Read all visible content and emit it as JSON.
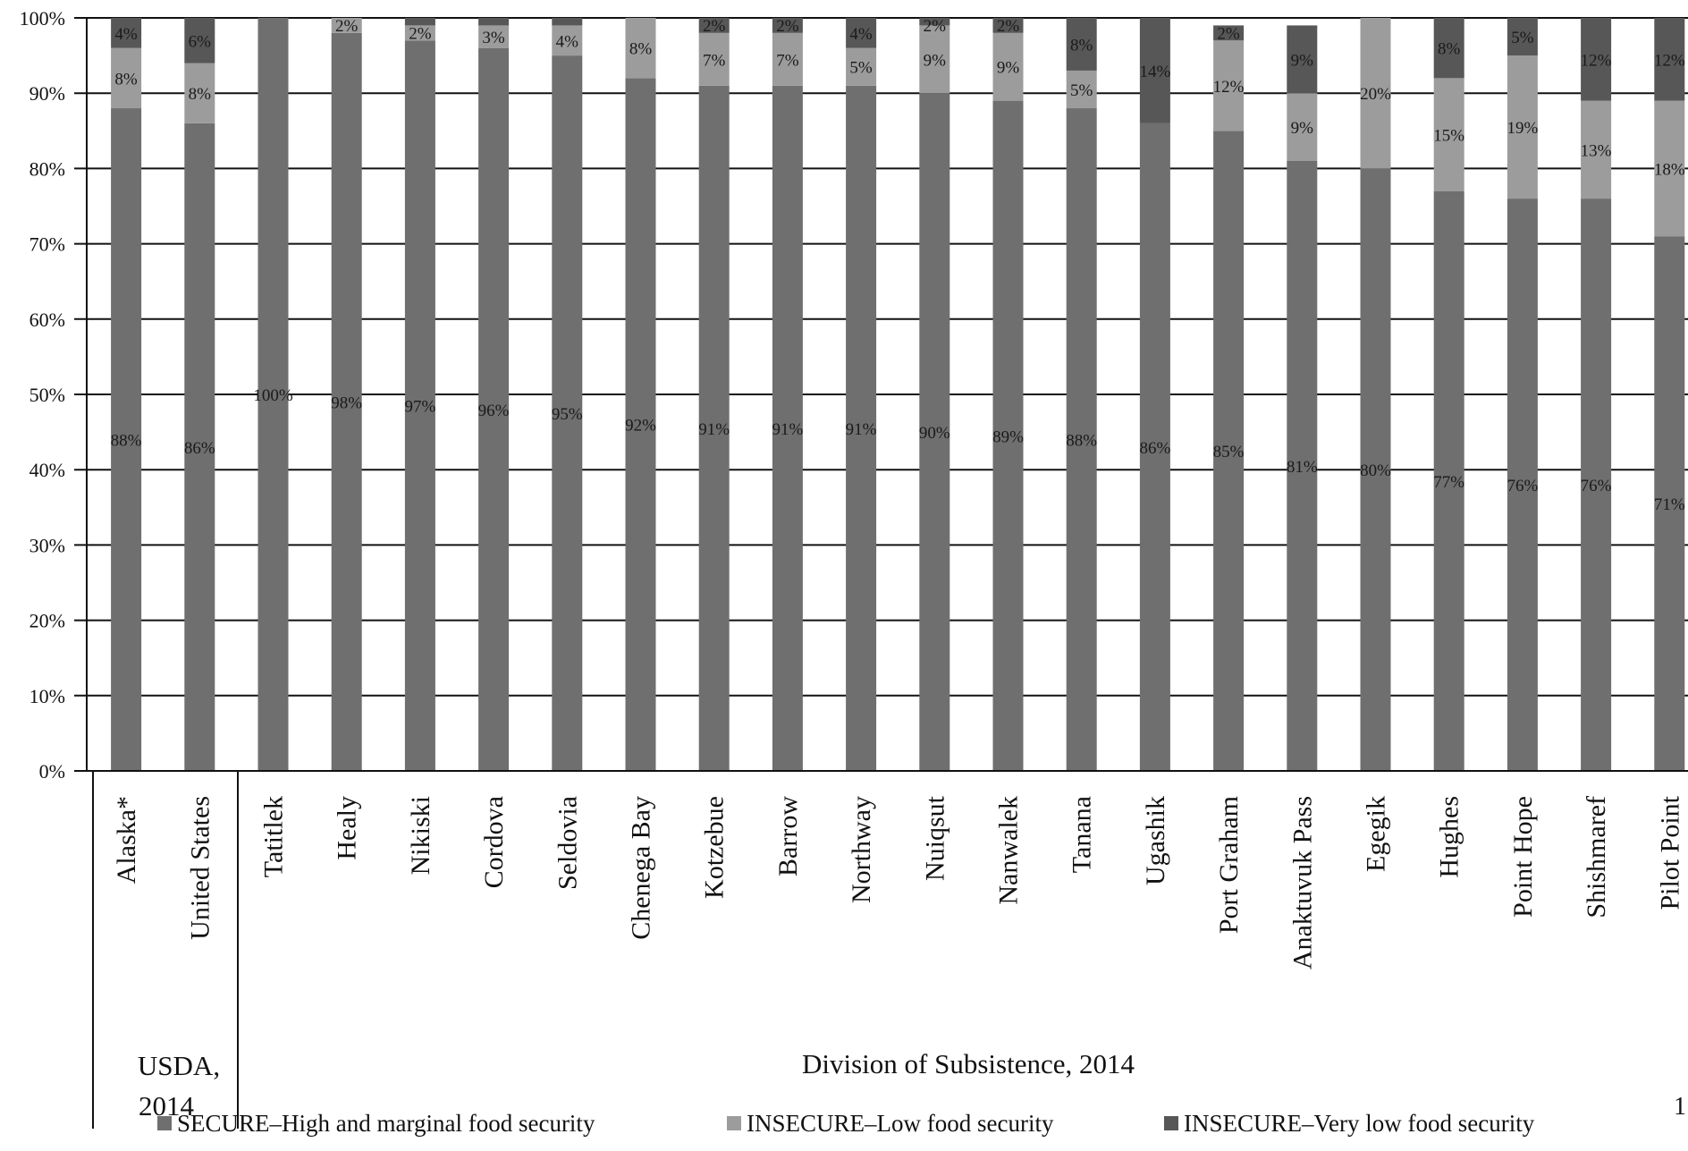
{
  "chart_data": {
    "type": "bar",
    "stacked": true,
    "categories": [
      "Alaska*",
      "United States",
      "Tatitlek",
      "Healy",
      "Nikiski",
      "Cordova",
      "Seldovia",
      "Chenega Bay",
      "Kotzebue",
      "Barrow",
      "Northway",
      "Nuiqsut",
      "Nanwalek",
      "Tanana",
      "Ugashik",
      "Port Graham",
      "Anaktuvuk Pass",
      "Egegik",
      "Hughes",
      "Point Hope",
      "Shishmaref",
      "Pilot Point"
    ],
    "series": [
      {
        "name": "SECURE–High and marginal food security",
        "color": "#6f6f6f",
        "values": [
          88,
          86,
          100,
          98,
          97,
          96,
          95,
          92,
          91,
          91,
          91,
          90,
          89,
          88,
          86,
          85,
          81,
          80,
          77,
          76,
          76,
          71
        ],
        "labels": [
          "88%",
          "86%",
          "100%",
          "98%",
          "97%",
          "96%",
          "95%",
          "92%",
          "91%",
          "91%",
          "91%",
          "90%",
          "89%",
          "88%",
          "86%",
          "85%",
          "81%",
          "80%",
          "77%",
          "76%",
          "76%",
          "71%"
        ]
      },
      {
        "name": "INSECURE–Low food security",
        "color": "#9c9c9c",
        "values": [
          8,
          8,
          0,
          2,
          2,
          3,
          4,
          8,
          7,
          7,
          5,
          9,
          9,
          5,
          0,
          12,
          9,
          20,
          15,
          19,
          13,
          18
        ],
        "labels": [
          "8%",
          "8%",
          "",
          "2%",
          "2%",
          "3%",
          "4%",
          "8%",
          "7%",
          "7%",
          "5%",
          "9%",
          "9%",
          "5%",
          "",
          "12%",
          "9%",
          "20%",
          "15%",
          "19%",
          "13%",
          "18%"
        ]
      },
      {
        "name": "INSECURE–Very low food security",
        "color": "#575757",
        "values": [
          4,
          6,
          0,
          0,
          1,
          1,
          1,
          0,
          2,
          2,
          4,
          2,
          2,
          8,
          14,
          2,
          9,
          0,
          8,
          5,
          12,
          12
        ],
        "labels": [
          "4%",
          "6%",
          "",
          "",
          "",
          "",
          "",
          "",
          "2%",
          "2%",
          "4%",
          "2%",
          "2%",
          "8%",
          "14%",
          "2%",
          "9%",
          "",
          "8%",
          "5%",
          "12%",
          "12%"
        ]
      }
    ],
    "yticks": [
      "0%",
      "10%",
      "20%",
      "30%",
      "40%",
      "50%",
      "60%",
      "70%",
      "80%",
      "90%",
      "100%"
    ],
    "ylim": [
      0,
      100
    ],
    "grid": true,
    "legend_position": "bottom",
    "groups": [
      {
        "label_lines": [
          "USDA,",
          "2014"
        ],
        "count": 2
      },
      {
        "label_lines": [
          "Division of Subsistence, 2014"
        ],
        "count": 20
      }
    ],
    "xlabel": "",
    "ylabel": "",
    "title": "",
    "edge_fragment": "1"
  }
}
